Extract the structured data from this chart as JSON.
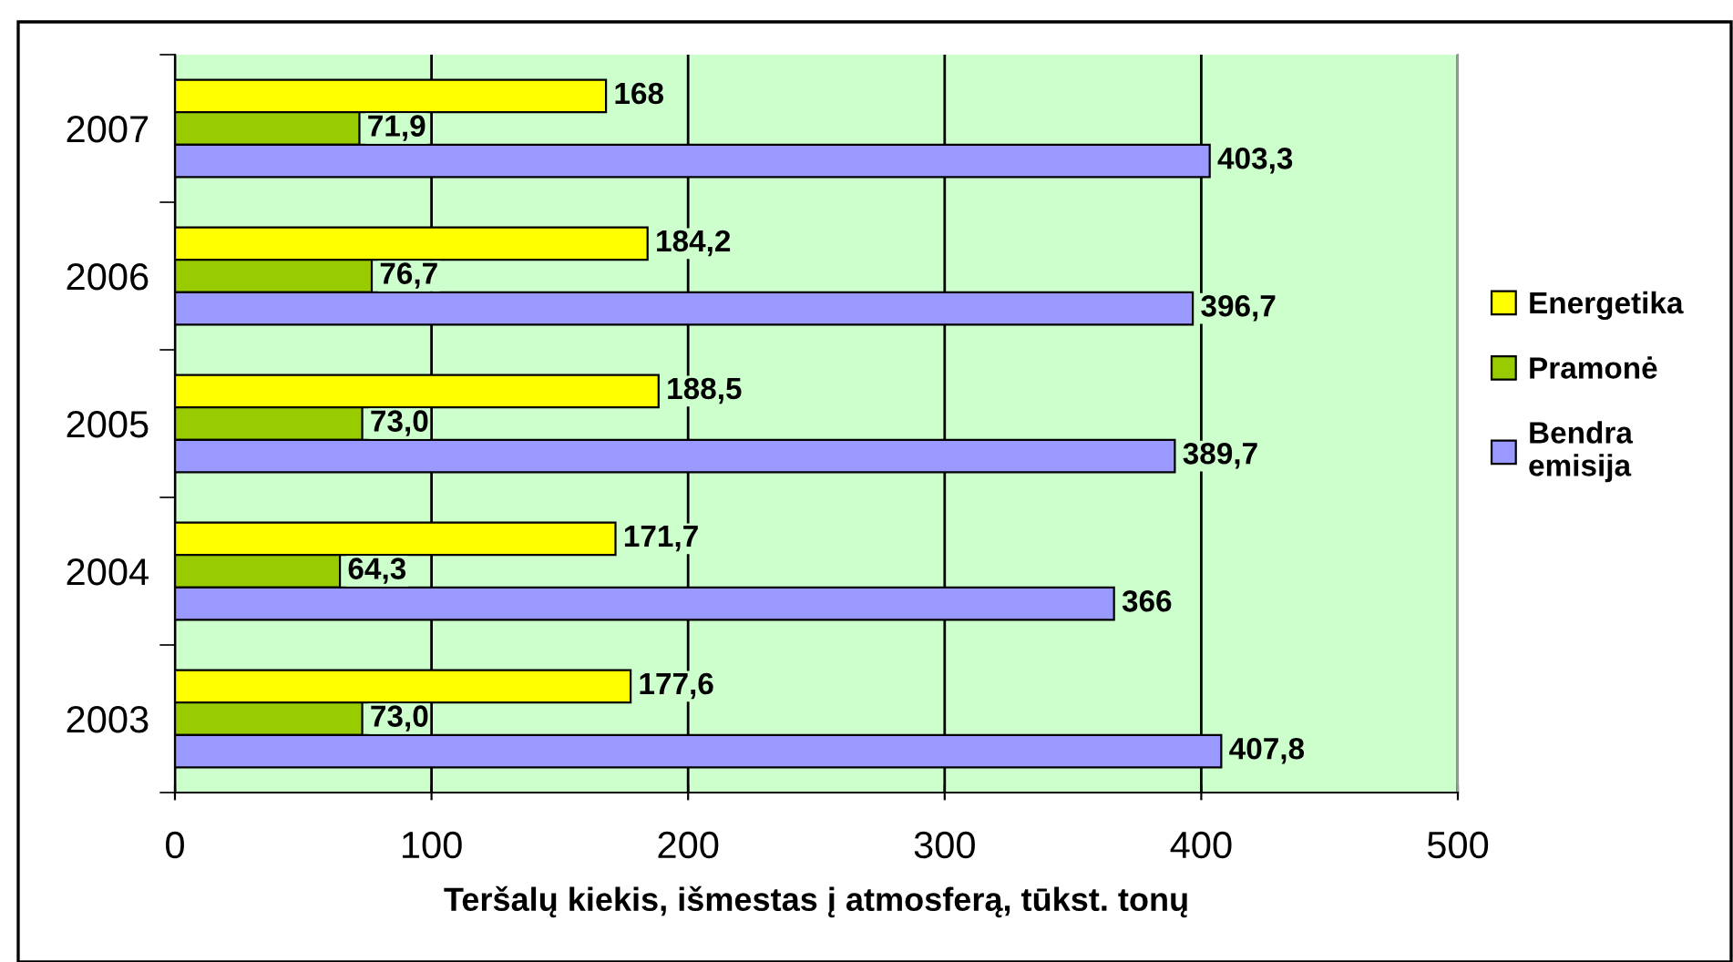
{
  "chart_data": {
    "type": "bar",
    "orientation": "horizontal",
    "xlabel": "Teršalų kiekis, išmestas į atmosferą, tūkst. tonų",
    "categories": [
      "2007",
      "2006",
      "2005",
      "2004",
      "2003"
    ],
    "series": [
      {
        "name": "Energetika",
        "color": "#ffff00",
        "values": [
          168,
          184.2,
          188.5,
          171.7,
          177.6
        ],
        "value_labels": [
          "168",
          "184,2",
          "188,5",
          "171,7",
          "177,6"
        ]
      },
      {
        "name": "Pramonė",
        "color": "#99cc00",
        "values": [
          71.9,
          76.7,
          73.0,
          64.3,
          73.0
        ],
        "value_labels": [
          "71,9",
          "76,7",
          "73,0",
          "64,3",
          "73,0"
        ]
      },
      {
        "name": "Bendra\nemisija",
        "color": "#9999ff",
        "values": [
          403.3,
          396.7,
          389.7,
          366,
          407.8
        ],
        "value_labels": [
          "403,3",
          "396,7",
          "389,7",
          "366",
          "407,8"
        ]
      }
    ],
    "xlim": [
      0,
      500
    ],
    "xticks": [
      0,
      100,
      200,
      300,
      400,
      500
    ],
    "grid": "x",
    "legend": "right"
  }
}
